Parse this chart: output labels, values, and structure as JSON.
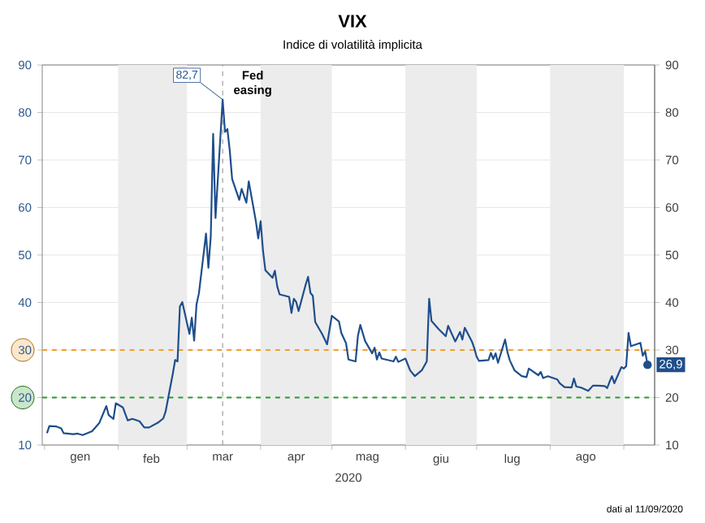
{
  "chart_data": {
    "type": "line",
    "title": "VIX",
    "subtitle": "Indice di volatilità implicita",
    "xlabel": "2020",
    "x": [
      "2020-01-02",
      "2020-01-03",
      "2020-01-06",
      "2020-01-08",
      "2020-01-09",
      "2020-01-13",
      "2020-01-15",
      "2020-01-17",
      "2020-01-21",
      "2020-01-24",
      "2020-01-27",
      "2020-01-28",
      "2020-01-30",
      "2020-01-31",
      "2020-02-03",
      "2020-02-05",
      "2020-02-07",
      "2020-02-10",
      "2020-02-12",
      "2020-02-14",
      "2020-02-18",
      "2020-02-20",
      "2020-02-21",
      "2020-02-24",
      "2020-02-25",
      "2020-02-26",
      "2020-02-27",
      "2020-02-28",
      "2020-03-02",
      "2020-03-03",
      "2020-03-04",
      "2020-03-05",
      "2020-03-06",
      "2020-03-09",
      "2020-03-10",
      "2020-03-11",
      "2020-03-12",
      "2020-03-13",
      "2020-03-16",
      "2020-03-17",
      "2020-03-18",
      "2020-03-19",
      "2020-03-20",
      "2020-03-23",
      "2020-03-24",
      "2020-03-26",
      "2020-03-27",
      "2020-03-30",
      "2020-03-31",
      "2020-04-01",
      "2020-04-02",
      "2020-04-03",
      "2020-04-06",
      "2020-04-07",
      "2020-04-08",
      "2020-04-09",
      "2020-04-13",
      "2020-04-14",
      "2020-04-15",
      "2020-04-16",
      "2020-04-17",
      "2020-04-20",
      "2020-04-21",
      "2020-04-22",
      "2020-04-23",
      "2020-04-24",
      "2020-04-27",
      "2020-04-29",
      "2020-04-30",
      "2020-05-01",
      "2020-05-04",
      "2020-05-05",
      "2020-05-07",
      "2020-05-08",
      "2020-05-11",
      "2020-05-12",
      "2020-05-13",
      "2020-05-15",
      "2020-05-18",
      "2020-05-19",
      "2020-05-20",
      "2020-05-21",
      "2020-05-22",
      "2020-05-27",
      "2020-05-28",
      "2020-05-29",
      "2020-06-01",
      "2020-06-03",
      "2020-06-05",
      "2020-06-08",
      "2020-06-10",
      "2020-06-11",
      "2020-06-12",
      "2020-06-15",
      "2020-06-18",
      "2020-06-19",
      "2020-06-22",
      "2020-06-24",
      "2020-06-25",
      "2020-06-26",
      "2020-06-29",
      "2020-06-30",
      "2020-07-01",
      "2020-07-02",
      "2020-07-06",
      "2020-07-07",
      "2020-07-08",
      "2020-07-09",
      "2020-07-10",
      "2020-07-13",
      "2020-07-14",
      "2020-07-15",
      "2020-07-17",
      "2020-07-20",
      "2020-07-22",
      "2020-07-23",
      "2020-07-27",
      "2020-07-28",
      "2020-07-29",
      "2020-07-31",
      "2020-08-04",
      "2020-08-05",
      "2020-08-07",
      "2020-08-10",
      "2020-08-11",
      "2020-08-12",
      "2020-08-14",
      "2020-08-17",
      "2020-08-19",
      "2020-08-21",
      "2020-08-24",
      "2020-08-25",
      "2020-08-26",
      "2020-08-27",
      "2020-08-28",
      "2020-08-31",
      "2020-09-01",
      "2020-09-02",
      "2020-09-03",
      "2020-09-04",
      "2020-09-08",
      "2020-09-09",
      "2020-09-10",
      "2020-09-11"
    ],
    "series": [
      {
        "color": "#1f4e8c",
        "values": [
          12.5,
          14.0,
          13.9,
          13.5,
          12.5,
          12.3,
          12.4,
          12.1,
          12.9,
          14.6,
          18.2,
          16.3,
          15.5,
          18.8,
          17.9,
          15.2,
          15.5,
          15.0,
          13.7,
          13.7,
          14.8,
          15.6,
          17.1,
          25.0,
          27.9,
          27.6,
          39.2,
          40.1,
          33.4,
          36.8,
          32.0,
          39.6,
          41.9,
          54.5,
          47.3,
          53.9,
          75.5,
          57.8,
          82.7,
          75.9,
          76.5,
          72.0,
          66.0,
          61.6,
          63.9,
          61.0,
          65.5,
          57.1,
          53.5,
          57.1,
          50.9,
          46.8,
          45.2,
          46.7,
          43.4,
          41.7,
          41.2,
          37.8,
          40.8,
          40.1,
          38.2,
          43.8,
          45.4,
          42.0,
          41.4,
          35.9,
          33.3,
          31.2,
          34.2,
          37.2,
          36.0,
          33.6,
          31.4,
          28.0,
          27.6,
          33.0,
          35.3,
          31.9,
          29.3,
          30.5,
          28.0,
          29.5,
          28.2,
          27.6,
          28.6,
          27.5,
          28.2,
          25.7,
          24.5,
          25.8,
          27.6,
          40.8,
          36.1,
          34.4,
          32.9,
          35.1,
          31.8,
          33.8,
          32.2,
          34.7,
          31.8,
          30.4,
          28.6,
          27.7,
          27.9,
          29.4,
          28.1,
          29.3,
          27.3,
          32.2,
          29.5,
          27.8,
          25.7,
          24.5,
          24.3,
          26.1,
          24.7,
          25.4,
          24.1,
          24.5,
          23.8,
          23.0,
          22.2,
          22.1,
          24.0,
          22.3,
          22.1,
          21.4,
          22.5,
          22.5,
          22.4,
          22.0,
          23.3,
          24.5,
          23.0,
          26.4,
          26.1,
          26.6,
          33.6,
          30.8,
          31.5,
          28.8,
          29.7,
          26.9
        ]
      }
    ],
    "xlim": [
      "2019-12-31",
      "2020-09-14"
    ],
    "xticks": [
      {
        "value": "2020-01-01",
        "label": null
      },
      {
        "value": "2020-02-01",
        "label": null
      },
      {
        "value": "2020-03-01",
        "label": null
      },
      {
        "value": "2020-04-01",
        "label": null
      },
      {
        "value": "2020-05-01",
        "label": null
      },
      {
        "value": "2020-06-01",
        "label": null
      },
      {
        "value": "2020-07-01",
        "label": null
      },
      {
        "value": "2020-08-01",
        "label": null
      },
      {
        "value": "2020-09-01",
        "label": null
      },
      {
        "value": "2020-01-16",
        "label": "gen"
      },
      {
        "value": "2020-02-15",
        "label": "feb"
      },
      {
        "value": "2020-03-16",
        "label": "mar"
      },
      {
        "value": "2020-04-16",
        "label": "apr"
      },
      {
        "value": "2020-05-16",
        "label": "mag"
      },
      {
        "value": "2020-06-16",
        "label": "giu"
      },
      {
        "value": "2020-07-16",
        "label": "lug"
      },
      {
        "value": "2020-08-16",
        "label": "ago"
      }
    ],
    "ylim": [
      10,
      90
    ],
    "yticks": [
      10,
      20,
      30,
      40,
      50,
      60,
      70,
      80,
      90
    ],
    "y2lim": [
      10,
      90
    ],
    "y2ticks": [
      10,
      20,
      30,
      40,
      50,
      60,
      70,
      80,
      90
    ],
    "grid": "y",
    "marker": "none",
    "line_style": "solid",
    "bands": [
      {
        "axis": "x",
        "from": "2020-02-01",
        "to": "2020-03-01",
        "color": "#ececec"
      },
      {
        "axis": "x",
        "from": "2020-04-01",
        "to": "2020-05-01",
        "color": "#ececec"
      },
      {
        "axis": "x",
        "from": "2020-06-01",
        "to": "2020-07-01",
        "color": "#ececec"
      },
      {
        "axis": "x",
        "from": "2020-08-01",
        "to": "2020-09-01",
        "color": "#ececec"
      }
    ],
    "ref_lines": [
      {
        "axis": "y",
        "value": 30,
        "color": "#f0a030",
        "line_style": "dashed"
      },
      {
        "axis": "y",
        "value": 20,
        "color": "#2a9a2a",
        "line_style": "dashed"
      },
      {
        "axis": "x",
        "value": "2020-03-16",
        "label": "Fed easing",
        "color": "#8a8a8a",
        "line_style": "dashed"
      }
    ],
    "annotations": [
      {
        "text": "82,7",
        "x": "2020-03-16",
        "y": 82.7
      },
      {
        "text": "26,9",
        "x": "2020-09-11",
        "y": 26.9
      },
      "dati al 11/09/2020"
    ]
  }
}
